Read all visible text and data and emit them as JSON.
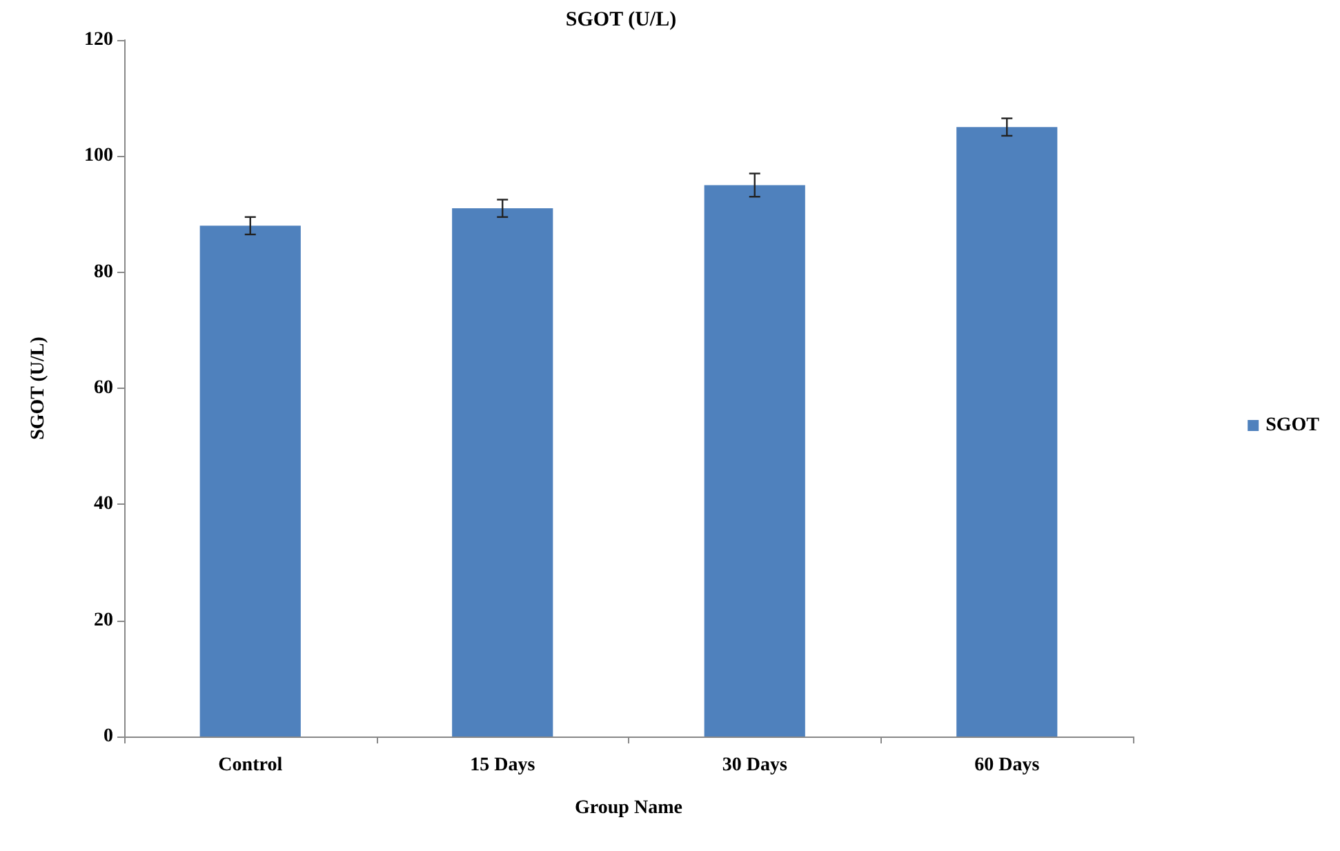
{
  "chart_data": {
    "type": "bar",
    "title": "SGOT (U/L)",
    "xlabel": "Group Name",
    "ylabel": "SGOT (U/L)",
    "categories": [
      "Control",
      "15 Days",
      "30 Days",
      "60 Days"
    ],
    "series": [
      {
        "name": "SGOT",
        "color": "#4f81bd",
        "values": [
          88,
          91,
          95,
          105
        ],
        "errors": [
          1.5,
          1.5,
          2,
          1.5
        ]
      }
    ],
    "ylim": [
      0,
      120
    ],
    "yticks": [
      0,
      20,
      40,
      60,
      80,
      100,
      120
    ],
    "grid": false,
    "legend": "right"
  }
}
